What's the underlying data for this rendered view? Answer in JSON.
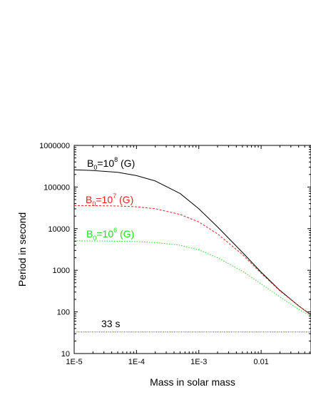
{
  "chart_data": {
    "type": "line",
    "xlabel": "Mass in solar mass",
    "ylabel": "Period in second",
    "xscale": "log",
    "yscale": "log",
    "xlim": [
      1e-05,
      0.0631
    ],
    "ylim": [
      10,
      1000000
    ],
    "grid": false,
    "x_ticks": [
      {
        "value": 1e-05,
        "label": "1E-5"
      },
      {
        "value": 0.0001,
        "label": "1E-4"
      },
      {
        "value": 0.001,
        "label": "1E-3"
      },
      {
        "value": 0.01,
        "label": "0.01"
      }
    ],
    "y_ticks": [
      {
        "value": 10,
        "label": "10"
      },
      {
        "value": 100,
        "label": "100"
      },
      {
        "value": 1000,
        "label": "1000"
      },
      {
        "value": 10000,
        "label": "10000"
      },
      {
        "value": 100000,
        "label": "100000"
      },
      {
        "value": 1000000,
        "label": "1000000"
      }
    ],
    "series": [
      {
        "name_main": "B",
        "name_sub": "0",
        "name_mid": "=10",
        "name_sup": "8",
        "name_tail": " (G)",
        "color": "#000000",
        "dash": "",
        "x": [
          1e-05,
          2e-05,
          5e-05,
          0.0001,
          0.0002,
          0.0005,
          0.001,
          0.002,
          0.005,
          0.01,
          0.02,
          0.04,
          0.063
        ],
        "y": [
          260000,
          250000,
          225000,
          188000,
          140000,
          70000,
          30000,
          11000,
          2700,
          900,
          330,
          140,
          85
        ]
      },
      {
        "name_main": "B",
        "name_sub": "0",
        "name_mid": "=10",
        "name_sup": "7",
        "name_tail": " (G)",
        "color": "#e8231f",
        "dash": "3,2",
        "x": [
          1e-05,
          2e-05,
          5e-05,
          0.0001,
          0.0002,
          0.0005,
          0.001,
          0.002,
          0.005,
          0.01,
          0.02,
          0.04,
          0.063
        ],
        "y": [
          36000,
          35800,
          35000,
          33500,
          30000,
          22000,
          14500,
          7500,
          2400,
          850,
          320,
          140,
          85
        ]
      },
      {
        "name_main": "B",
        "name_sub": "0",
        "name_mid": "=10",
        "name_sup": "6",
        "name_tail": " (G)",
        "color": "#22dd22",
        "dash": "1.5,2",
        "x": [
          1e-05,
          2e-05,
          5e-05,
          0.0001,
          0.0002,
          0.0005,
          0.001,
          0.002,
          0.005,
          0.01,
          0.02,
          0.04,
          0.063
        ],
        "y": [
          5100,
          5080,
          5000,
          4900,
          4650,
          4000,
          3100,
          2000,
          950,
          470,
          230,
          115,
          80
        ]
      },
      {
        "name": "33 s",
        "color": "#3333cc",
        "dash": "1,1.5",
        "x": [
          1e-05,
          0.0631
        ],
        "y": [
          33,
          33
        ]
      }
    ]
  }
}
